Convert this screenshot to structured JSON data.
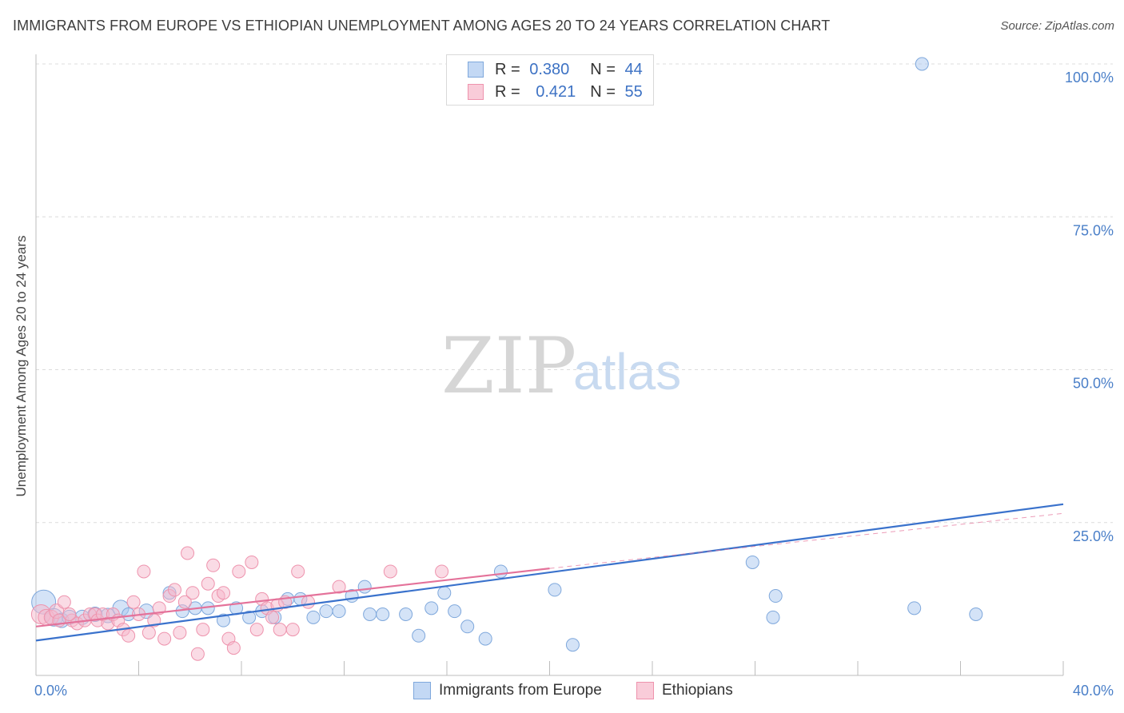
{
  "header": {
    "title": "IMMIGRANTS FROM EUROPE VS ETHIOPIAN UNEMPLOYMENT AMONG AGES 20 TO 24 YEARS CORRELATION CHART",
    "source": "Source: ZipAtlas.com"
  },
  "watermark": {
    "zip": "ZIP",
    "atlas": "atlas"
  },
  "legend": {
    "r_label": "R =",
    "n_label": "N =",
    "series": [
      {
        "name": "Immigrants from Europe",
        "r": "0.380",
        "n": "44"
      },
      {
        "name": "Ethiopians",
        "r": "0.421",
        "n": "55"
      }
    ]
  },
  "colors": {
    "blue_fill": "#aac8ef",
    "blue_stroke": "#7fa8dc",
    "blue_line": "#3a72cc",
    "pink_fill": "#f6b8cb",
    "pink_stroke": "#ee93ad",
    "pink_line": "#e4729a",
    "grid": "#dcdcdc",
    "tick_label": "#4a7fc8"
  },
  "chart_data": {
    "type": "scatter",
    "title": "IMMIGRANTS FROM EUROPE VS ETHIOPIAN UNEMPLOYMENT AMONG AGES 20 TO 24 YEARS CORRELATION CHART",
    "xlabel": "",
    "ylabel": "Unemployment Among Ages 20 to 24 years",
    "xlim": [
      0,
      40
    ],
    "ylim": [
      0,
      100
    ],
    "x_tick_labels": [
      "0.0%",
      "40.0%"
    ],
    "y_ticks": [
      {
        "value": 25,
        "label": "25.0%"
      },
      {
        "value": 50,
        "label": "50.0%"
      },
      {
        "value": 75,
        "label": "75.0%"
      },
      {
        "value": 100,
        "label": "100.0%"
      }
    ],
    "grid": true,
    "series": [
      {
        "name": "Immigrants from Europe",
        "color": "#aac8ef",
        "trend": {
          "x": [
            0,
            40
          ],
          "y": [
            5.7,
            28.0
          ]
        },
        "points": [
          {
            "x": 0.3,
            "y": 12.0,
            "s": 15
          },
          {
            "x": 0.7,
            "y": 9.5,
            "s": 11
          },
          {
            "x": 1.0,
            "y": 9.0,
            "s": 9
          },
          {
            "x": 1.3,
            "y": 9.5,
            "s": 9
          },
          {
            "x": 1.8,
            "y": 9.5,
            "s": 9
          },
          {
            "x": 2.3,
            "y": 10.0,
            "s": 9
          },
          {
            "x": 2.8,
            "y": 9.8,
            "s": 9
          },
          {
            "x": 3.3,
            "y": 11.0,
            "s": 10
          },
          {
            "x": 3.6,
            "y": 10.0,
            "s": 8
          },
          {
            "x": 4.3,
            "y": 10.5,
            "s": 9
          },
          {
            "x": 5.2,
            "y": 13.5,
            "s": 8
          },
          {
            "x": 5.7,
            "y": 10.5,
            "s": 8
          },
          {
            "x": 6.2,
            "y": 11.0,
            "s": 8
          },
          {
            "x": 6.7,
            "y": 11.0,
            "s": 8
          },
          {
            "x": 7.3,
            "y": 9.0,
            "s": 8
          },
          {
            "x": 7.8,
            "y": 11.0,
            "s": 8
          },
          {
            "x": 8.3,
            "y": 9.5,
            "s": 8
          },
          {
            "x": 8.8,
            "y": 10.5,
            "s": 8
          },
          {
            "x": 9.3,
            "y": 9.5,
            "s": 8
          },
          {
            "x": 9.8,
            "y": 12.5,
            "s": 8
          },
          {
            "x": 10.3,
            "y": 12.5,
            "s": 8
          },
          {
            "x": 10.8,
            "y": 9.5,
            "s": 8
          },
          {
            "x": 11.3,
            "y": 10.5,
            "s": 8
          },
          {
            "x": 11.8,
            "y": 10.5,
            "s": 8
          },
          {
            "x": 12.3,
            "y": 13.0,
            "s": 8
          },
          {
            "x": 12.8,
            "y": 14.5,
            "s": 8
          },
          {
            "x": 13.0,
            "y": 10.0,
            "s": 8
          },
          {
            "x": 13.5,
            "y": 10.0,
            "s": 8
          },
          {
            "x": 14.4,
            "y": 10.0,
            "s": 8
          },
          {
            "x": 14.9,
            "y": 6.5,
            "s": 8
          },
          {
            "x": 15.4,
            "y": 11.0,
            "s": 8
          },
          {
            "x": 15.9,
            "y": 13.5,
            "s": 8
          },
          {
            "x": 16.3,
            "y": 10.5,
            "s": 8
          },
          {
            "x": 16.8,
            "y": 8.0,
            "s": 8
          },
          {
            "x": 17.5,
            "y": 6.0,
            "s": 8
          },
          {
            "x": 18.1,
            "y": 17.0,
            "s": 8
          },
          {
            "x": 20.2,
            "y": 14.0,
            "s": 8
          },
          {
            "x": 20.9,
            "y": 5.0,
            "s": 8
          },
          {
            "x": 27.9,
            "y": 18.5,
            "s": 8
          },
          {
            "x": 28.7,
            "y": 9.5,
            "s": 8
          },
          {
            "x": 28.8,
            "y": 13.0,
            "s": 8
          },
          {
            "x": 34.2,
            "y": 11.0,
            "s": 8
          },
          {
            "x": 34.5,
            "y": 100.0,
            "s": 8
          },
          {
            "x": 36.6,
            "y": 10.0,
            "s": 8
          }
        ]
      },
      {
        "name": "Ethiopians",
        "color": "#f6b8cb",
        "trend": {
          "x": [
            0,
            20
          ],
          "y": [
            8.0,
            17.5
          ]
        },
        "trend_dashed": {
          "x": [
            20,
            40
          ],
          "y": [
            17.5,
            26.5
          ]
        },
        "points": [
          {
            "x": 0.2,
            "y": 10.0,
            "s": 12
          },
          {
            "x": 0.4,
            "y": 9.5,
            "s": 10
          },
          {
            "x": 0.6,
            "y": 9.5,
            "s": 9
          },
          {
            "x": 0.8,
            "y": 10.5,
            "s": 9
          },
          {
            "x": 1.1,
            "y": 12.0,
            "s": 8
          },
          {
            "x": 1.4,
            "y": 9.0,
            "s": 8
          },
          {
            "x": 1.6,
            "y": 8.5,
            "s": 8
          },
          {
            "x": 1.9,
            "y": 9.0,
            "s": 8
          },
          {
            "x": 2.1,
            "y": 10.0,
            "s": 8
          },
          {
            "x": 2.3,
            "y": 10.0,
            "s": 8
          },
          {
            "x": 2.4,
            "y": 9.0,
            "s": 8
          },
          {
            "x": 2.6,
            "y": 10.0,
            "s": 8
          },
          {
            "x": 2.8,
            "y": 8.5,
            "s": 8
          },
          {
            "x": 3.0,
            "y": 10.0,
            "s": 8
          },
          {
            "x": 3.2,
            "y": 9.0,
            "s": 8
          },
          {
            "x": 3.4,
            "y": 7.5,
            "s": 8
          },
          {
            "x": 3.6,
            "y": 6.5,
            "s": 8
          },
          {
            "x": 3.8,
            "y": 12.0,
            "s": 8
          },
          {
            "x": 4.0,
            "y": 10.0,
            "s": 8
          },
          {
            "x": 4.2,
            "y": 17.0,
            "s": 8
          },
          {
            "x": 4.4,
            "y": 7.0,
            "s": 8
          },
          {
            "x": 4.6,
            "y": 9.0,
            "s": 8
          },
          {
            "x": 4.8,
            "y": 11.0,
            "s": 8
          },
          {
            "x": 5.0,
            "y": 6.0,
            "s": 8
          },
          {
            "x": 5.2,
            "y": 13.0,
            "s": 8
          },
          {
            "x": 5.4,
            "y": 14.0,
            "s": 8
          },
          {
            "x": 5.6,
            "y": 7.0,
            "s": 8
          },
          {
            "x": 5.8,
            "y": 12.0,
            "s": 8
          },
          {
            "x": 5.9,
            "y": 20.0,
            "s": 8
          },
          {
            "x": 6.1,
            "y": 13.5,
            "s": 8
          },
          {
            "x": 6.3,
            "y": 3.5,
            "s": 8
          },
          {
            "x": 6.5,
            "y": 7.5,
            "s": 8
          },
          {
            "x": 6.7,
            "y": 15.0,
            "s": 8
          },
          {
            "x": 6.9,
            "y": 18.0,
            "s": 8
          },
          {
            "x": 7.1,
            "y": 13.0,
            "s": 8
          },
          {
            "x": 7.3,
            "y": 13.5,
            "s": 8
          },
          {
            "x": 7.5,
            "y": 6.0,
            "s": 8
          },
          {
            "x": 7.7,
            "y": 4.5,
            "s": 8
          },
          {
            "x": 7.9,
            "y": 17.0,
            "s": 8
          },
          {
            "x": 8.4,
            "y": 18.5,
            "s": 8
          },
          {
            "x": 8.6,
            "y": 7.5,
            "s": 8
          },
          {
            "x": 8.8,
            "y": 12.5,
            "s": 8
          },
          {
            "x": 9.0,
            "y": 11.0,
            "s": 8
          },
          {
            "x": 9.2,
            "y": 9.5,
            "s": 8
          },
          {
            "x": 9.4,
            "y": 11.5,
            "s": 8
          },
          {
            "x": 9.5,
            "y": 7.5,
            "s": 8
          },
          {
            "x": 9.7,
            "y": 12.0,
            "s": 8
          },
          {
            "x": 10.0,
            "y": 7.5,
            "s": 8
          },
          {
            "x": 10.2,
            "y": 17.0,
            "s": 8
          },
          {
            "x": 10.6,
            "y": 12.0,
            "s": 8
          },
          {
            "x": 11.8,
            "y": 14.5,
            "s": 8
          },
          {
            "x": 13.8,
            "y": 17.0,
            "s": 8
          },
          {
            "x": 15.8,
            "y": 17.0,
            "s": 8
          },
          {
            "x": 0.9,
            "y": 9.0,
            "s": 8
          },
          {
            "x": 1.3,
            "y": 10.0,
            "s": 8
          }
        ]
      }
    ]
  }
}
